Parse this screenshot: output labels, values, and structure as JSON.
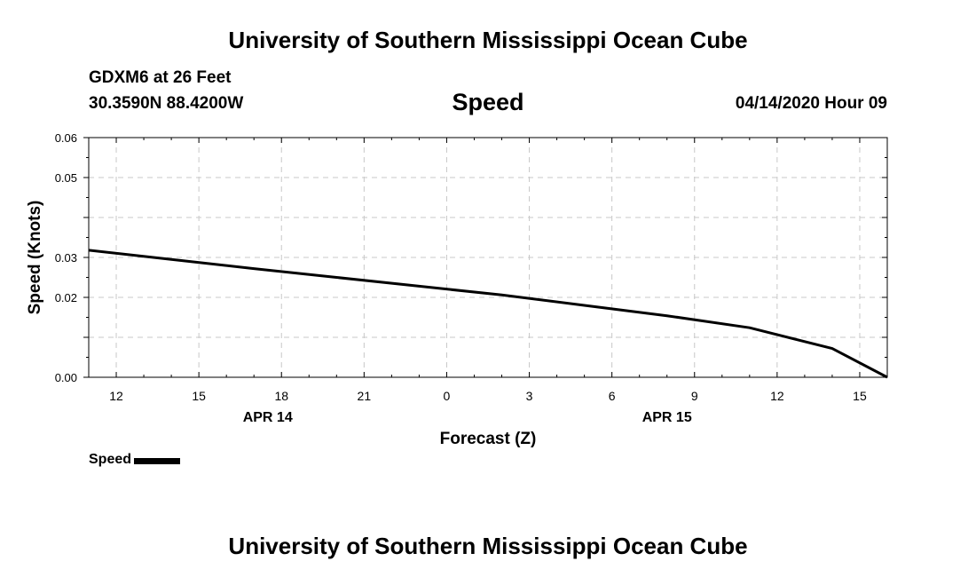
{
  "header": {
    "title": "University of Southern Mississippi Ocean Cube"
  },
  "station": {
    "name": "GDXM6 at 26 Feet",
    "coords": "30.3590N 88.4200W",
    "datetime": "04/14/2020 Hour 09"
  },
  "footer": {
    "title": "University of Southern Mississippi Ocean Cube"
  },
  "colors": {
    "line": "#000000",
    "grid": "#c8c8c8",
    "background": "#ffffff"
  },
  "chart_data": {
    "type": "line",
    "title": "Speed",
    "xlabel": "Forecast (Z)",
    "ylabel": "Speed (Knots)",
    "x_unit": "hours since 04/14/2020 00Z",
    "xlim": [
      11,
      40
    ],
    "ylim": [
      0,
      0.06
    ],
    "grid": true,
    "legend": "bottom-left",
    "x_ticks": [
      {
        "x": 12,
        "label": "12"
      },
      {
        "x": 15,
        "label": "15"
      },
      {
        "x": 18,
        "label": "18"
      },
      {
        "x": 21,
        "label": "21"
      },
      {
        "x": 24,
        "label": "0"
      },
      {
        "x": 27,
        "label": "3"
      },
      {
        "x": 30,
        "label": "6"
      },
      {
        "x": 33,
        "label": "9"
      },
      {
        "x": 36,
        "label": "12"
      },
      {
        "x": 39,
        "label": "15"
      }
    ],
    "date_labels": [
      {
        "x": 17.5,
        "label": "APR 14"
      },
      {
        "x": 32,
        "label": "APR 15"
      }
    ],
    "y_ticks": [
      {
        "y": 0.0,
        "label": "0.00"
      },
      {
        "y": 0.02,
        "label": "0.02"
      },
      {
        "y": 0.03,
        "label": "0.03"
      },
      {
        "y": 0.05,
        "label": "0.05"
      },
      {
        "y": 0.06,
        "label": "0.06"
      }
    ],
    "y_grid": [
      0.01,
      0.02,
      0.03,
      0.04,
      0.05
    ],
    "series": [
      {
        "name": "Speed",
        "x": [
          11,
          14,
          17,
          20,
          23,
          26,
          29,
          32,
          35,
          38,
          40
        ],
        "values": [
          0.0318,
          0.0295,
          0.0272,
          0.025,
          0.0228,
          0.0206,
          0.018,
          0.0154,
          0.0124,
          0.0072,
          0.0
        ]
      }
    ]
  }
}
